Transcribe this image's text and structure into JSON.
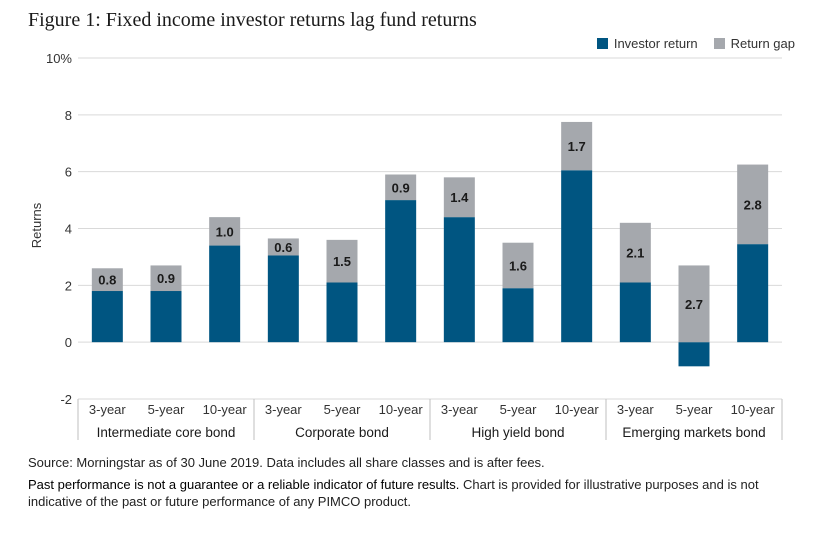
{
  "title": "Figure 1: Fixed income investor returns lag fund returns",
  "legend": [
    {
      "name": "Investor return",
      "color": "#005581"
    },
    {
      "name": "Return gap",
      "color": "#a5a8ad"
    }
  ],
  "chart_data": {
    "type": "bar",
    "stacked": true,
    "ylabel": "Returns",
    "ylim": [
      -2,
      10
    ],
    "yticks": [
      {
        "v": -2,
        "label": "-2"
      },
      {
        "v": 0,
        "label": "0"
      },
      {
        "v": 2,
        "label": "2"
      },
      {
        "v": 4,
        "label": "4"
      },
      {
        "v": 6,
        "label": "6"
      },
      {
        "v": 8,
        "label": "8"
      },
      {
        "v": 10,
        "label": "10%"
      }
    ],
    "grid": true,
    "legend_position": "top-right",
    "groups": [
      {
        "name": "Intermediate core bond",
        "categories": [
          "3-year",
          "5-year",
          "10-year"
        ]
      },
      {
        "name": "Corporate bond",
        "categories": [
          "3-year",
          "5-year",
          "10-year"
        ]
      },
      {
        "name": "High yield bond",
        "categories": [
          "3-year",
          "5-year",
          "10-year"
        ]
      },
      {
        "name": "Emerging markets bond",
        "categories": [
          "3-year",
          "5-year",
          "10-year"
        ]
      }
    ],
    "series": [
      {
        "name": "Investor return",
        "color": "#005581",
        "values": [
          1.8,
          1.8,
          3.4,
          3.05,
          2.1,
          5.0,
          4.4,
          1.9,
          6.05,
          2.1,
          -0.85,
          3.45
        ]
      },
      {
        "name": "Return gap",
        "color": "#a5a8ad",
        "values": [
          0.8,
          0.9,
          1.0,
          0.6,
          1.5,
          0.9,
          1.4,
          1.6,
          1.7,
          2.1,
          2.7,
          2.8
        ]
      }
    ],
    "gap_labels": [
      "0.8",
      "0.9",
      "1.0",
      "0.6",
      "1.5",
      "0.9",
      "1.4",
      "1.6",
      "1.7",
      "2.1",
      "2.7",
      "2.8"
    ]
  },
  "footer": {
    "source": "Source: Morningstar as of 30 June 2019. Data includes all share classes and is after fees.",
    "disclaimer_bold": "Past performance is not a guarantee or a reliable indicator of future results.",
    "disclaimer_rest": " Chart is provided for illustrative purposes and is not indicative of the past or future performance of any PIMCO product."
  }
}
